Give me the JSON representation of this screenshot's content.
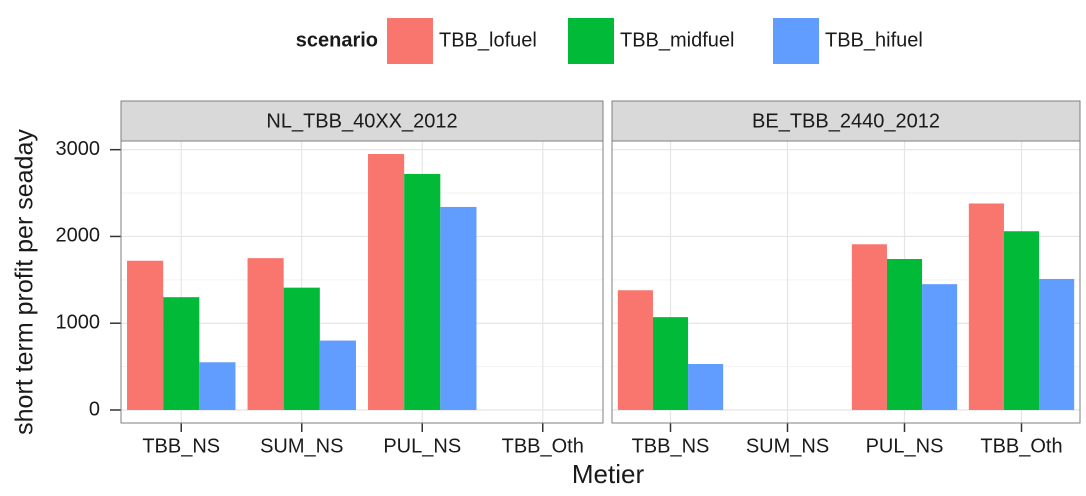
{
  "chart_data": {
    "type": "bar",
    "xlabel": "Metier",
    "ylabel": "short term profit per seaday",
    "legend_title": "scenario",
    "legend_position": "top",
    "grid": true,
    "ylim": [
      -150,
      3100
    ],
    "yticks": [
      0,
      1000,
      2000,
      3000
    ],
    "facets": [
      {
        "title": "NL_TBB_40XX_2012",
        "categories": [
          "TBB_NS",
          "SUM_NS",
          "PUL_NS",
          "TBB_Oth"
        ],
        "series": [
          {
            "name": "TBB_lofuel",
            "color": "#f8766d",
            "values": [
              1720,
              1750,
              2950,
              null
            ]
          },
          {
            "name": "TBB_midfuel",
            "color": "#00ba38",
            "values": [
              1300,
              1410,
              2720,
              null
            ]
          },
          {
            "name": "TBB_hifuel",
            "color": "#619cff",
            "values": [
              550,
              800,
              2340,
              null
            ]
          }
        ]
      },
      {
        "title": "BE_TBB_2440_2012",
        "categories": [
          "TBB_NS",
          "SUM_NS",
          "PUL_NS",
          "TBB_Oth"
        ],
        "series": [
          {
            "name": "TBB_lofuel",
            "color": "#f8766d",
            "values": [
              1380,
              null,
              1910,
              2380
            ]
          },
          {
            "name": "TBB_midfuel",
            "color": "#00ba38",
            "values": [
              1070,
              null,
              1740,
              2060
            ]
          },
          {
            "name": "TBB_hifuel",
            "color": "#619cff",
            "values": [
              530,
              null,
              1450,
              1510
            ]
          }
        ]
      }
    ]
  }
}
